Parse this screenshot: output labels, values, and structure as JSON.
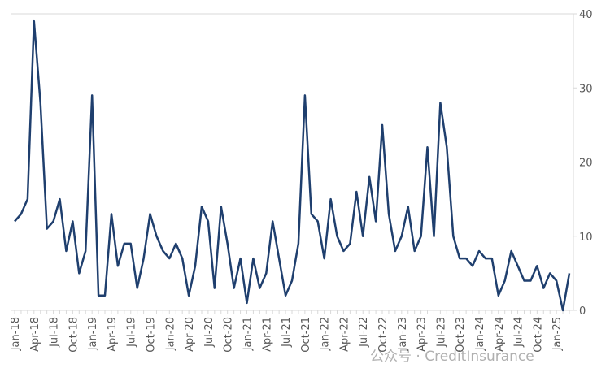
{
  "chart_data": {
    "type": "line",
    "categories": [
      "Jan-18",
      null,
      null,
      "Apr-18",
      null,
      null,
      "Jul-18",
      null,
      null,
      "Oct-18",
      null,
      null,
      "Jan-19",
      null,
      null,
      "Apr-19",
      null,
      null,
      "Jul-19",
      null,
      null,
      "Oct-19",
      null,
      null,
      "Jan-20",
      null,
      null,
      "Apr-20",
      null,
      null,
      "Jul-20",
      null,
      null,
      "Oct-20",
      null,
      null,
      "Jan-21",
      null,
      null,
      "Apr-21",
      null,
      null,
      "Jul-21",
      null,
      null,
      "Oct-21",
      null,
      null,
      "Jan-22",
      null,
      null,
      "Apr-22",
      null,
      null,
      "Jul-22",
      null,
      null,
      "Oct-22",
      null,
      null,
      "Jan-23",
      null,
      null,
      "Apr-23",
      null,
      null,
      "Jul-23",
      null,
      null,
      "Oct-23",
      null,
      null,
      "Jan-24",
      null,
      null,
      "Apr-24",
      null,
      null,
      "Jul-24",
      null,
      null,
      "Oct-24",
      null,
      null,
      "Jan-25",
      null,
      null
    ],
    "series": [
      {
        "color": "#1f3f6e",
        "values": [
          12,
          13,
          15,
          39,
          28,
          11,
          12,
          15,
          8,
          12,
          5,
          8,
          29,
          2,
          2,
          13,
          6,
          9,
          9,
          3,
          7,
          13,
          10,
          8,
          7,
          9,
          7,
          2,
          6,
          14,
          12,
          3,
          14,
          9,
          3,
          7,
          1,
          7,
          3,
          5,
          12,
          7,
          2,
          4,
          9,
          29,
          13,
          12,
          7,
          15,
          10,
          8,
          9,
          16,
          10,
          18,
          12,
          25,
          13,
          8,
          10,
          14,
          8,
          10,
          22,
          10,
          28,
          22,
          10,
          7,
          7,
          6,
          8,
          7,
          7,
          2,
          4,
          8,
          6,
          4,
          4,
          6,
          3,
          5,
          4,
          0,
          5
        ]
      }
    ],
    "ylim": [
      0,
      40
    ],
    "yticks": [
      0,
      10,
      20,
      30,
      40
    ],
    "watermark": "公众号 · CreditInsurance"
  }
}
